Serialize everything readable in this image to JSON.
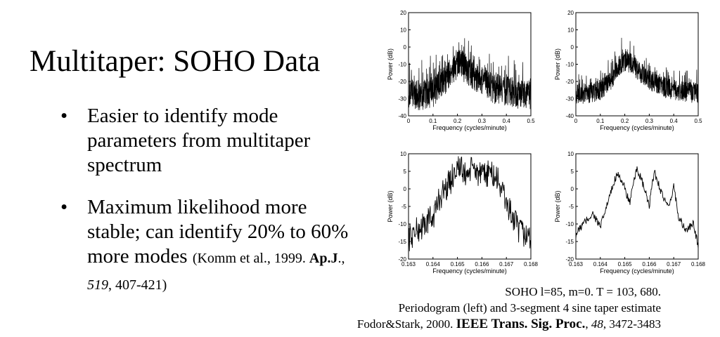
{
  "slide": {
    "title": "Multitaper: SOHO Data",
    "bullets": [
      {
        "marker": "•",
        "text": "Easier to identify mode parameters from multitaper spectrum"
      },
      {
        "marker": "•",
        "text": "Maximum likelihood more stable; can identify 20% to 60% more modes",
        "ref_prefix": "(Komm et al., 1999. ",
        "ref_journal": "Ap.J",
        "ref_sep1": ".,",
        "ref_volume": "519",
        "ref_pages": ", 407-421)"
      }
    ],
    "caption": {
      "line1": "SOHO l=85, m=0. T = 103, 680.",
      "line2": "Periodogram (left) and 3-segment 4 sine taper estimate",
      "line3_prefix": "Fodor&Stark, 2000. ",
      "line3_journal": "IEEE Trans. Sig. Proc.",
      "line3_sep": ", ",
      "line3_volume": "48",
      "line3_pages": ", 3472-3483"
    }
  },
  "chart_data": [
    {
      "type": "line",
      "panel": "top-left",
      "xlabel": "Frequency (cycles/minute)",
      "ylabel": "Power (dB)",
      "xlim": [
        0,
        0.5
      ],
      "ylim": [
        -40,
        20
      ],
      "xticks": [
        "0",
        "0.1",
        "0.2",
        "0.3",
        "0.4",
        "0.5"
      ],
      "yticks": [
        "20",
        "10",
        "0",
        "-10",
        "-20",
        "-30",
        "-40"
      ],
      "series": [
        {
          "x": [
            0,
            0.05,
            0.1,
            0.15,
            0.18,
            0.2,
            0.22,
            0.25,
            0.3,
            0.35,
            0.4,
            0.45,
            0.5
          ],
          "y": [
            -27,
            -28,
            -26,
            -20,
            -12,
            -10,
            -11,
            -14,
            -20,
            -24,
            -26,
            -27,
            -28
          ]
        }
      ]
    },
    {
      "type": "line",
      "panel": "top-right",
      "xlabel": "Frequency (cycles/minute)",
      "ylabel": "Power (dB)",
      "xlim": [
        0,
        0.5
      ],
      "ylim": [
        -40,
        20
      ],
      "xticks": [
        "0",
        "0.1",
        "0.2",
        "0.3",
        "0.4",
        "0.5"
      ],
      "yticks": [
        "20",
        "10",
        "0",
        "-10",
        "-20",
        "-30",
        "-40"
      ],
      "series": [
        {
          "x": [
            0,
            0.05,
            0.1,
            0.15,
            0.18,
            0.2,
            0.22,
            0.25,
            0.3,
            0.35,
            0.4,
            0.45,
            0.5
          ],
          "y": [
            -27,
            -27,
            -25,
            -18,
            -10,
            -8,
            -9,
            -13,
            -19,
            -23,
            -25,
            -26,
            -27
          ]
        }
      ]
    },
    {
      "type": "line",
      "panel": "bottom-left",
      "xlabel": "Frequency (cycles/minute)",
      "ylabel": "Power (dB)",
      "xlim": [
        0.163,
        0.168
      ],
      "ylim": [
        -20,
        10
      ],
      "xticks": [
        "0.163",
        "0.164",
        "0.165",
        "0.166",
        "0.167",
        "0.168"
      ],
      "yticks": [
        "10",
        "5",
        "0",
        "-5",
        "-10",
        "-15",
        "-20"
      ],
      "series": [
        {
          "x": [
            0.163,
            0.1635,
            0.164,
            0.1643,
            0.1647,
            0.165,
            0.1653,
            0.1657,
            0.166,
            0.1663,
            0.1667,
            0.167,
            0.1675,
            0.168
          ],
          "y": [
            -14,
            -11,
            -8,
            -2,
            2,
            7,
            4,
            6,
            3,
            5,
            2,
            -4,
            -12,
            -14
          ]
        }
      ]
    },
    {
      "type": "line",
      "panel": "bottom-right",
      "xlabel": "Frequency (cycles/minute)",
      "ylabel": "Power (dB)",
      "xlim": [
        0.163,
        0.168
      ],
      "ylim": [
        -20,
        10
      ],
      "xticks": [
        "0.163",
        "0.164",
        "0.165",
        "0.166",
        "0.167",
        "0.168"
      ],
      "yticks": [
        "10",
        "5",
        "0",
        "-5",
        "-10",
        "-15",
        "-20"
      ],
      "series": [
        {
          "x": [
            0.163,
            0.1633,
            0.1637,
            0.164,
            0.1643,
            0.1647,
            0.165,
            0.1652,
            0.1655,
            0.1658,
            0.166,
            0.1662,
            0.1665,
            0.1668,
            0.167,
            0.1672,
            0.1675,
            0.1678,
            0.168
          ],
          "y": [
            -13,
            -10,
            -7,
            -11,
            -4,
            5,
            0,
            -4,
            6,
            0,
            -5,
            5,
            -1,
            -6,
            1,
            -8,
            -12,
            -10,
            -16
          ]
        }
      ]
    }
  ]
}
